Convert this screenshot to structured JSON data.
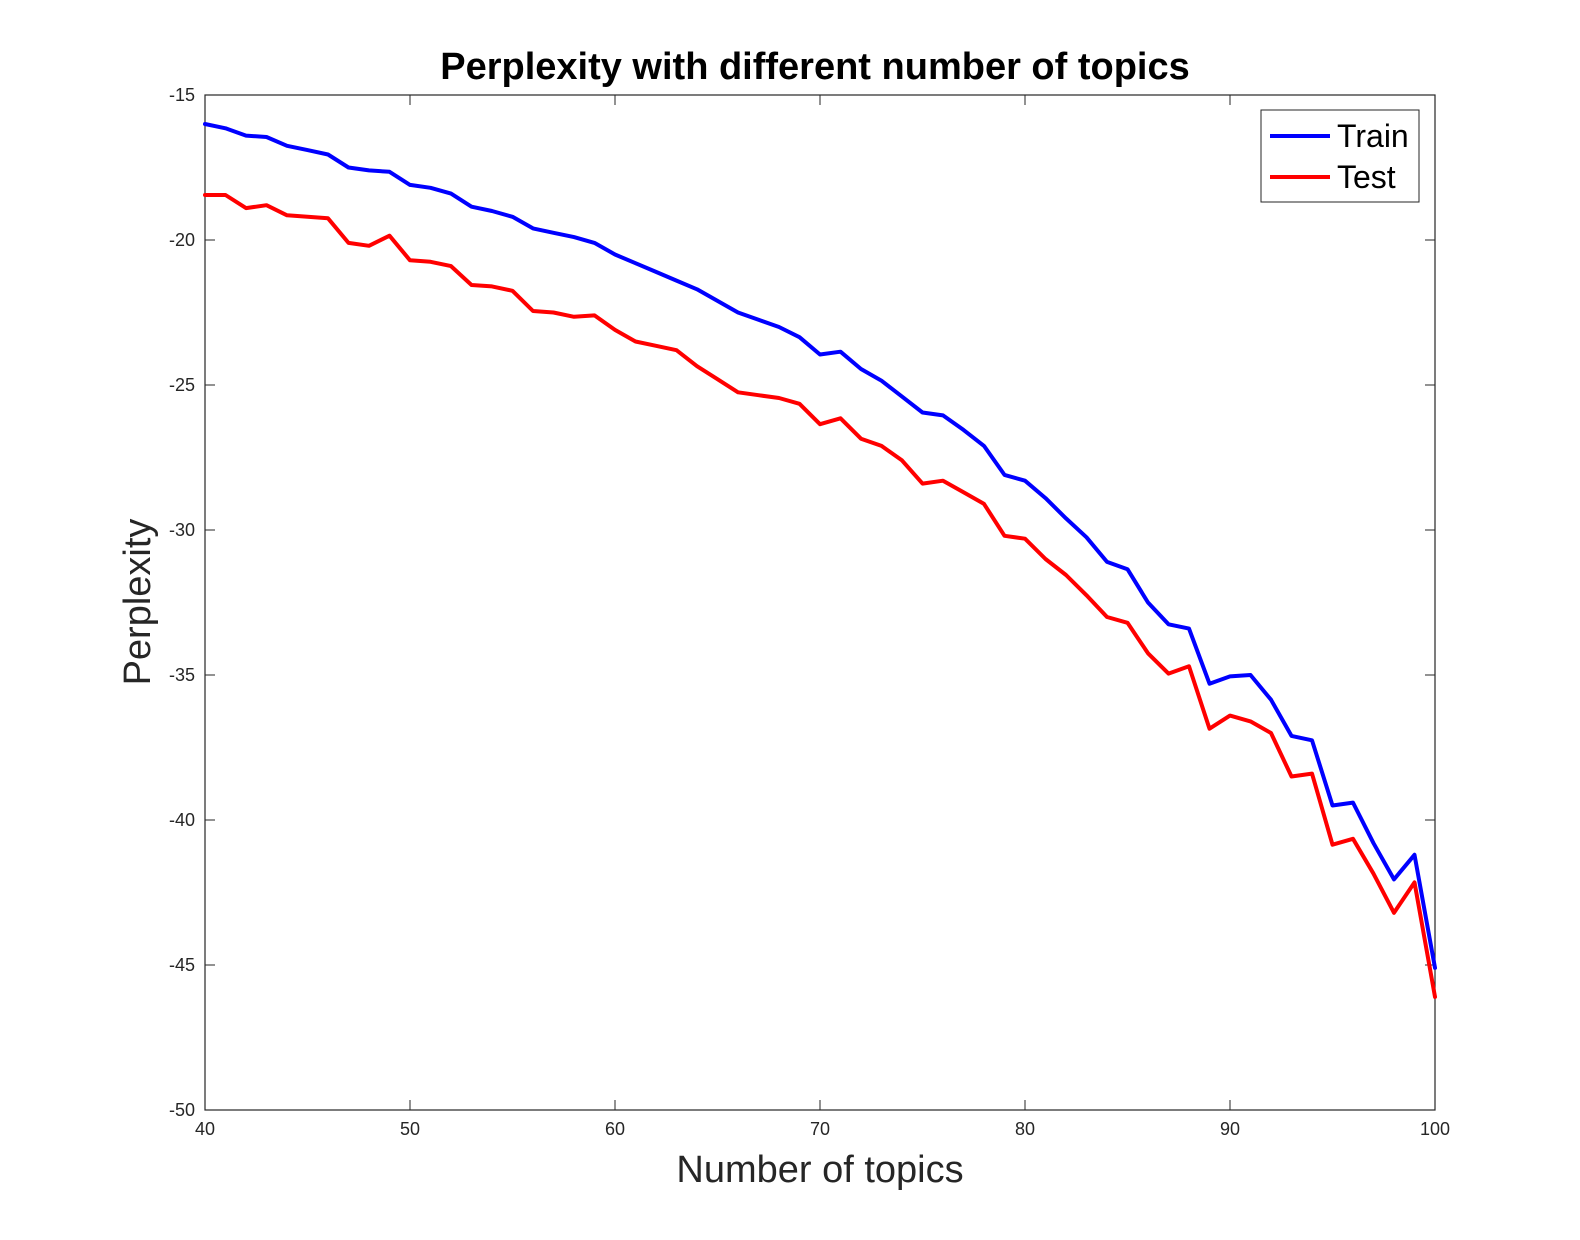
{
  "chart_data": {
    "type": "line",
    "title": "Perplexity with different number of topics",
    "xlabel": "Number of topics",
    "ylabel": "Perplexity",
    "xlim": [
      40,
      100
    ],
    "ylim": [
      -50,
      -15
    ],
    "xticks": [
      40,
      50,
      60,
      70,
      80,
      90,
      100
    ],
    "yticks": [
      -15,
      -20,
      -25,
      -30,
      -35,
      -40,
      -45,
      -50
    ],
    "grid": false,
    "legend_position": "top-right",
    "x": [
      40,
      41,
      42,
      43,
      44,
      45,
      46,
      47,
      48,
      49,
      50,
      51,
      52,
      53,
      54,
      55,
      56,
      57,
      58,
      59,
      60,
      61,
      62,
      63,
      64,
      65,
      66,
      67,
      68,
      69,
      70,
      71,
      72,
      73,
      74,
      75,
      76,
      77,
      78,
      79,
      80,
      81,
      82,
      83,
      84,
      85,
      86,
      87,
      88,
      89,
      90,
      91,
      92,
      93,
      94,
      95,
      96,
      97,
      98,
      99,
      100
    ],
    "series": [
      {
        "name": "Train",
        "color": "#0000ff",
        "values": [
          -16.0,
          -16.15,
          -16.4,
          -16.45,
          -16.75,
          -16.9,
          -17.05,
          -17.5,
          -17.6,
          -17.65,
          -18.1,
          -18.2,
          -18.4,
          -18.85,
          -19.0,
          -19.2,
          -19.6,
          -19.75,
          -19.9,
          -20.1,
          -20.5,
          -20.8,
          -21.1,
          -21.4,
          -21.7,
          -22.1,
          -22.5,
          -22.75,
          -23.0,
          -23.35,
          -23.95,
          -23.85,
          -24.45,
          -24.85,
          -25.4,
          -25.95,
          -26.05,
          -26.55,
          -27.1,
          -28.1,
          -28.3,
          -28.9,
          -29.6,
          -30.25,
          -31.1,
          -31.35,
          -32.5,
          -33.25,
          -33.4,
          -35.3,
          -35.05,
          -35.0,
          -35.85,
          -37.1,
          -37.25,
          -39.5,
          -39.4,
          -40.8,
          -42.05,
          -41.2,
          -45.1
        ]
      },
      {
        "name": "Test",
        "color": "#ff0000",
        "values": [
          -18.45,
          -18.45,
          -18.9,
          -18.8,
          -19.15,
          -19.2,
          -19.25,
          -20.1,
          -20.2,
          -19.85,
          -20.7,
          -20.75,
          -20.9,
          -21.55,
          -21.6,
          -21.75,
          -22.45,
          -22.5,
          -22.65,
          -22.6,
          -23.1,
          -23.5,
          -23.65,
          -23.8,
          -24.35,
          -24.8,
          -25.25,
          -25.35,
          -25.45,
          -25.65,
          -26.35,
          -26.15,
          -26.85,
          -27.1,
          -27.6,
          -28.4,
          -28.3,
          -28.7,
          -29.1,
          -30.2,
          -30.3,
          -31.0,
          -31.55,
          -32.25,
          -33.0,
          -33.2,
          -34.25,
          -34.95,
          -34.7,
          -36.85,
          -36.4,
          -36.6,
          -37.0,
          -38.5,
          -38.4,
          -40.85,
          -40.65,
          -41.85,
          -43.2,
          -42.15,
          -46.1
        ]
      }
    ]
  }
}
